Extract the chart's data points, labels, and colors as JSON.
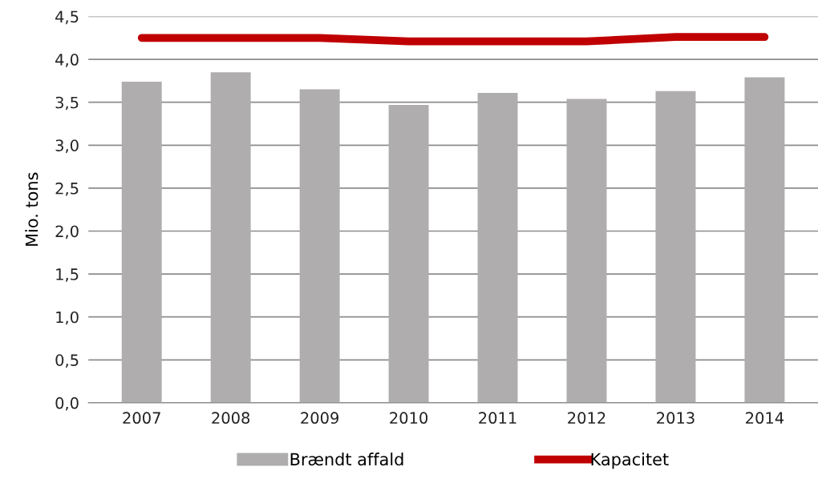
{
  "chart_data": {
    "type": "bar",
    "ylabel": "Mio. tons",
    "categories": [
      "2007",
      "2008",
      "2009",
      "2010",
      "2011",
      "2012",
      "2013",
      "2014"
    ],
    "series": [
      {
        "name": "Brændt affald",
        "color": "#afadad",
        "values": [
          3.74,
          3.85,
          3.65,
          3.47,
          3.61,
          3.54,
          3.63,
          3.79
        ]
      },
      {
        "name": "Kapacitet",
        "type": "line",
        "color": "#c00000",
        "values": [
          4.25,
          4.25,
          4.25,
          4.21,
          4.21,
          4.21,
          4.26,
          4.26
        ]
      }
    ],
    "ylim": [
      0,
      4.5
    ],
    "yticks": [
      {
        "value": 0,
        "label": "0,0"
      },
      {
        "value": 0.5,
        "label": "0,5"
      },
      {
        "value": 1,
        "label": "1,0"
      },
      {
        "value": 1.5,
        "label": "1,5"
      },
      {
        "value": 2,
        "label": "2,0"
      },
      {
        "value": 2.5,
        "label": "2,5"
      },
      {
        "value": 3,
        "label": "3,0"
      },
      {
        "value": 3.5,
        "label": "3,5"
      },
      {
        "value": 4,
        "label": "4,0"
      },
      {
        "value": 4.5,
        "label": "4,5"
      }
    ],
    "grid": "y",
    "legend": "bottom"
  }
}
